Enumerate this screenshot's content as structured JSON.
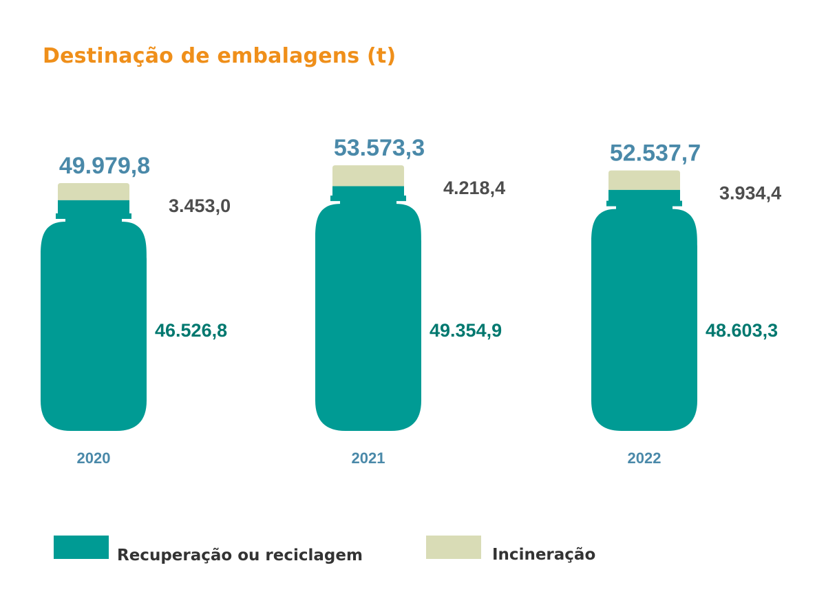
{
  "chart_data": {
    "type": "bar",
    "title": "Destinação de embalagens (t)",
    "categories": [
      "2020",
      "2021",
      "2022"
    ],
    "series": [
      {
        "name": "Recuperação ou reciclagem",
        "values": [
          46526.8,
          49354.9,
          48603.3
        ],
        "labels": [
          "46.526,8",
          "49.354,9",
          "48.603,3"
        ],
        "color": "#009b94"
      },
      {
        "name": "Incineração",
        "values": [
          3453.0,
          4218.4,
          3934.4
        ],
        "labels": [
          "3.453,0",
          "4.218,4",
          "3.934,4"
        ],
        "color": "#d9dcb6"
      }
    ],
    "totals": [
      49979.8,
      53573.3,
      52537.7
    ],
    "total_labels": [
      "49.979,8",
      "53.573,3",
      "52.537,7"
    ],
    "stacked": true,
    "legend_position": "bottom",
    "grid": false
  },
  "colors": {
    "title": "#ef8f1a",
    "total_label": "#4a89a9",
    "year_label": "#4a89a9",
    "incineration_label": "#4d4d4d",
    "recovery_label": "#00786f"
  }
}
